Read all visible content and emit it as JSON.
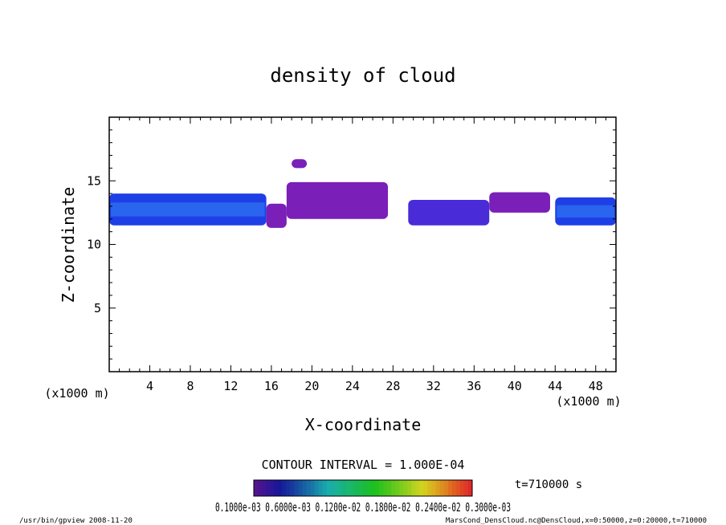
{
  "chart_data": {
    "type": "heatmap",
    "title": "density of cloud",
    "xlabel": "X-coordinate",
    "ylabel": "Z-coordinate",
    "x_unit_left": "(x1000 m)",
    "x_unit_right": "(x1000 m)",
    "xlim": [
      0,
      50
    ],
    "ylim": [
      0,
      20
    ],
    "xticks": [
      4,
      8,
      12,
      16,
      20,
      24,
      28,
      32,
      36,
      40,
      44,
      48
    ],
    "yticks": [
      5,
      10,
      15
    ],
    "contour_interval": "CONTOUR INTERVAL = 1.000E-04",
    "time_label": "t=710000 s",
    "colorbar_labels": "0.1000e-03  0.6000e-03  0.1200e-02  0.1800e-02  0.2400e-02  0.3000e-03",
    "colors": {
      "low": "#7a1fb8",
      "mid": "#4a2bd8",
      "high": "#1f3fe6",
      "peak": "#2b6cf0"
    },
    "regions": [
      {
        "x": [
          0,
          15.5
        ],
        "z": [
          11.5,
          14.0
        ],
        "level": "high"
      },
      {
        "x": [
          15.5,
          17.5
        ],
        "z": [
          11.3,
          13.2
        ],
        "level": "low"
      },
      {
        "x": [
          17.5,
          27.5
        ],
        "z": [
          12.0,
          14.9
        ],
        "level": "low"
      },
      {
        "x": [
          18.0,
          19.5
        ],
        "z": [
          16.0,
          16.7
        ],
        "level": "low"
      },
      {
        "x": [
          29.5,
          37.5
        ],
        "z": [
          11.5,
          13.5
        ],
        "level": "mid"
      },
      {
        "x": [
          37.5,
          43.5
        ],
        "z": [
          12.5,
          14.1
        ],
        "level": "low"
      },
      {
        "x": [
          44.0,
          50
        ],
        "z": [
          11.5,
          13.7
        ],
        "level": "high"
      }
    ]
  },
  "footer": {
    "left": "/usr/bin/gpview   2008-11-20",
    "right": "MarsCond_DensCloud.nc@DensCloud,x=0:50000,z=0:20000,t=710000"
  }
}
